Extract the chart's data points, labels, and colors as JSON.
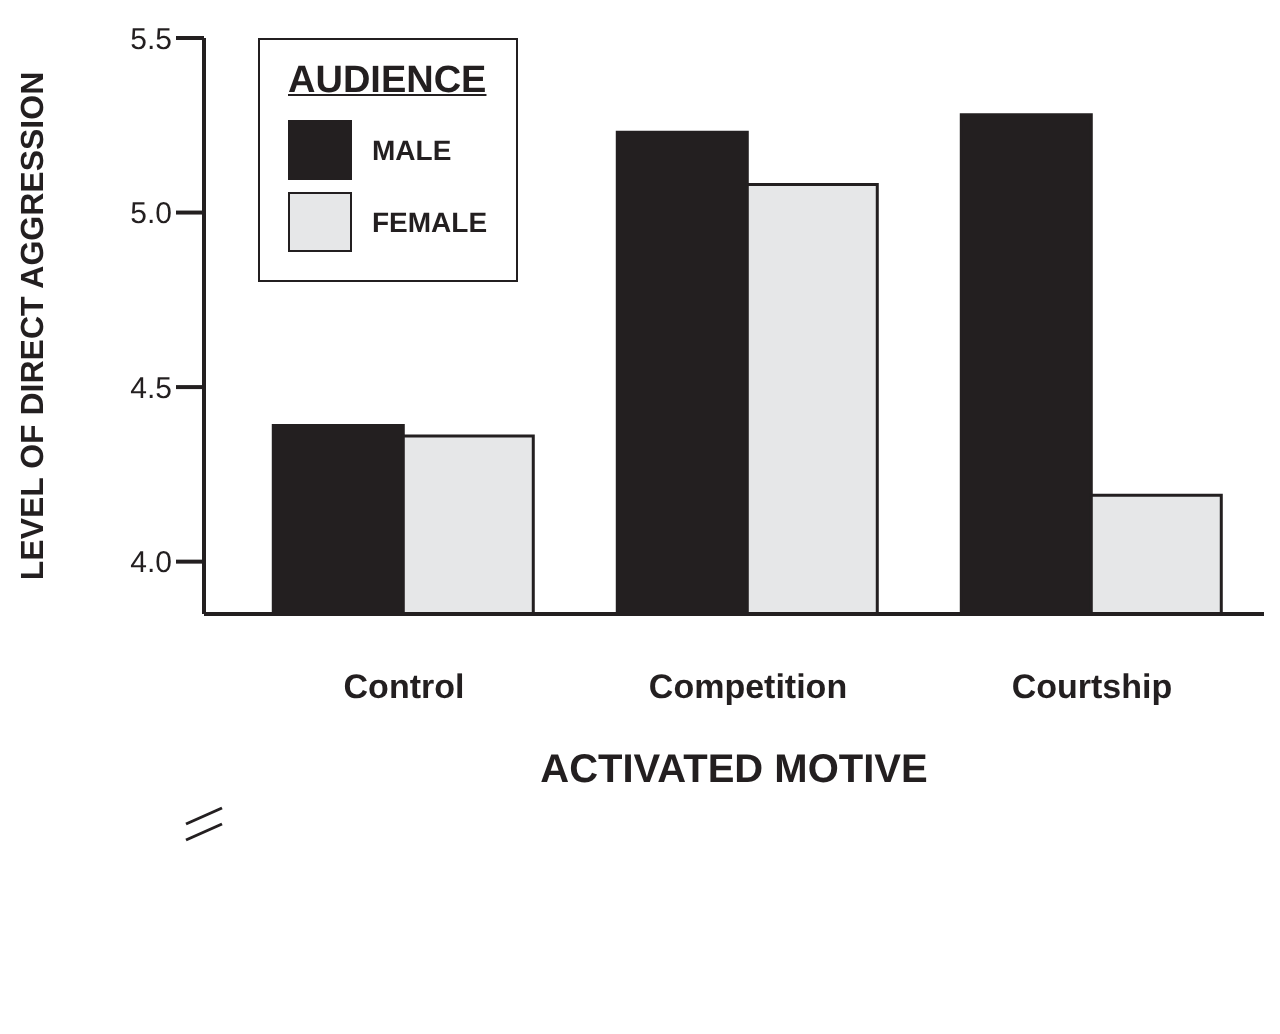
{
  "chart_data": {
    "type": "bar",
    "xlabel": "ACTIVATED MOTIVE",
    "ylabel": "LEVEL OF DIRECT AGGRESSION",
    "legend_title": "AUDIENCE",
    "legend": "top left",
    "grid": false,
    "categories": [
      "Control",
      "Competition",
      "Courtship"
    ],
    "series": [
      {
        "name": "MALE",
        "color": "#231f20",
        "values": [
          4.39,
          5.23,
          5.28
        ]
      },
      {
        "name": "FEMALE",
        "color": "#e6e7e8",
        "values": [
          4.36,
          5.08,
          4.19
        ]
      }
    ],
    "ylim": [
      3.85,
      5.5
    ],
    "yticks": [
      {
        "value": 4,
        "label": "4.0"
      },
      {
        "value": 4.5,
        "label": "4.5"
      },
      {
        "value": 5,
        "label": "5.0"
      },
      {
        "value": 5.5,
        "label": "5.5"
      }
    ]
  }
}
